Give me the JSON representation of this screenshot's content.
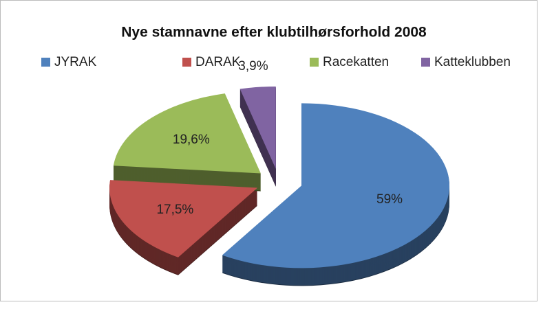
{
  "chart_data": {
    "type": "pie",
    "title": "Nye stamnavne efter klubtilhørsforhold 2008",
    "categories": [
      "JYRAK",
      "DARAK",
      "Racekatten",
      "Katteklubben"
    ],
    "values": [
      59,
      17.5,
      19.6,
      3.9
    ],
    "value_labels": [
      "59%",
      "17,5%",
      "19,6%",
      "3,9%"
    ],
    "colors": [
      "#4f81bd",
      "#c0504d",
      "#9bbb59",
      "#8064a2"
    ],
    "legend": "top"
  }
}
